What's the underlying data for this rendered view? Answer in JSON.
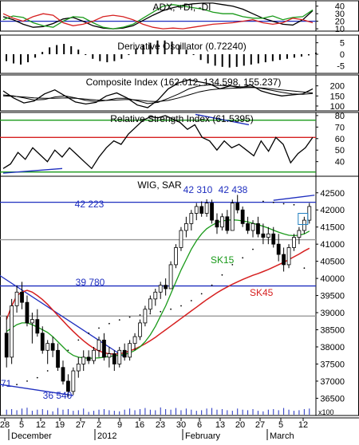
{
  "chart_data": [
    {
      "type": "line",
      "title": "ADX, +DI, -DI",
      "ylim": [
        8,
        46
      ],
      "yticks": [
        10,
        20,
        30,
        40
      ],
      "hlines": [
        {
          "value": 20,
          "color": "#1f2fbf"
        }
      ],
      "series": [
        {
          "role": "adx",
          "color": "#000000",
          "values": [
            26,
            22,
            16,
            12,
            13,
            17,
            23,
            25,
            20,
            14,
            11,
            10,
            11,
            14,
            21,
            28,
            34,
            38,
            41,
            43,
            44,
            44,
            42,
            40,
            36,
            30,
            24,
            20,
            16,
            15,
            22,
            34
          ]
        },
        {
          "role": "plus_di",
          "color": "#1a9a1a",
          "values": [
            22,
            27,
            25,
            18,
            14,
            12,
            20,
            26,
            25,
            18,
            12,
            10,
            12,
            16,
            24,
            32,
            40,
            42,
            40,
            38,
            36,
            32,
            30,
            30,
            26,
            24,
            24,
            27,
            22,
            25,
            26,
            35
          ]
        },
        {
          "role": "minus_di",
          "color": "#d62020",
          "values": [
            30,
            24,
            20,
            26,
            30,
            28,
            18,
            14,
            16,
            20,
            26,
            28,
            26,
            22,
            16,
            12,
            10,
            11,
            10,
            12,
            14,
            16,
            17,
            18,
            20,
            22,
            18,
            16,
            18,
            24,
            22,
            18
          ]
        }
      ]
    },
    {
      "type": "bar",
      "title": "Derivative Oscillator (0.72240)",
      "ylim": [
        -8,
        8
      ],
      "yticks": [
        5,
        0,
        -5
      ],
      "values": [
        -3,
        -4,
        -4.5,
        -3.5,
        -1.5,
        1,
        3,
        4,
        4.5,
        3.5,
        2,
        0,
        -2,
        -3,
        -3.5,
        -3,
        -2,
        0,
        2.5,
        4,
        5,
        6,
        6,
        5.5,
        4,
        2,
        0,
        -2.5,
        -4,
        -5,
        -5.5,
        -5.8,
        -5.5,
        -5,
        -4.5,
        -4,
        -3.5,
        -3,
        -2.5,
        -2,
        -1.5,
        -1,
        -0.5,
        0.7
      ]
    },
    {
      "type": "line",
      "title": "Composite Index (162.012, 134.598, 155.237)",
      "ylim": [
        80,
        250
      ],
      "yticks": [
        100,
        150,
        200
      ],
      "series": [
        {
          "role": "composite",
          "color": "#000000",
          "values": [
            175,
            140,
            115,
            125,
            160,
            180,
            150,
            120,
            110,
            118,
            150,
            165,
            140,
            105,
            92,
            130,
            185,
            215,
            230,
            220,
            210,
            185,
            200,
            190,
            205,
            175,
            160,
            150,
            155,
            160,
            185
          ]
        },
        {
          "role": "average_1",
          "color": "#000000",
          "values": [
            155,
            150,
            140,
            130,
            132,
            145,
            150,
            140,
            128,
            122,
            128,
            138,
            138,
            126,
            112,
            118,
            138,
            160,
            185,
            200,
            205,
            202,
            200,
            195,
            195,
            188,
            178,
            168,
            160,
            158,
            162
          ]
        },
        {
          "role": "average_2",
          "color": "#000000",
          "values": [
            150,
            148,
            145,
            140,
            138,
            138,
            140,
            138,
            134,
            130,
            128,
            130,
            132,
            130,
            124,
            122,
            128,
            140,
            155,
            170,
            180,
            185,
            188,
            190,
            192,
            190,
            185,
            180,
            175,
            170,
            165
          ]
        }
      ]
    },
    {
      "type": "line",
      "title": "Relative Strength Index (61.5395)",
      "ylim": [
        28,
        82
      ],
      "yticks": [
        40,
        50,
        60,
        70,
        80
      ],
      "hlines": [
        {
          "value": 76,
          "color": "#1a9a1a"
        },
        {
          "value": 61,
          "color": "#d62020"
        },
        {
          "value": 31,
          "color": "#1a9a1a"
        }
      ],
      "series": [
        {
          "role": "rsi",
          "color": "#000000",
          "values": [
            34,
            38,
            48,
            42,
            52,
            46,
            40,
            50,
            44,
            52,
            46,
            40,
            34,
            44,
            52,
            58,
            55,
            64,
            70,
            76,
            79,
            78,
            80,
            77,
            74,
            68,
            72,
            61,
            58,
            50,
            58,
            52,
            55,
            50,
            45,
            58,
            49,
            61,
            55,
            39,
            47,
            52,
            61
          ]
        },
        {
          "role": "trendline_low",
          "color": "#1f2fbf",
          "values": [
            30,
            34
          ]
        },
        {
          "role": "trendline_high",
          "color": "#1f2fbf",
          "values": [
            81,
            72
          ]
        }
      ]
    },
    {
      "type": "candlestick",
      "title": "WIG, SAR",
      "ylim": [
        36020,
        42960
      ],
      "yticks": [
        36500,
        37000,
        37500,
        38000,
        38500,
        39000,
        39500,
        40000,
        40500,
        41000,
        41500,
        42000,
        42500
      ],
      "unit_label": "x100",
      "x_tick_labels": [
        "28",
        "5",
        "12",
        "19",
        "27",
        "2",
        "9",
        "16",
        "23",
        "30",
        "6",
        "13",
        "20",
        "27",
        "5",
        "12"
      ],
      "month_labels": [
        "December",
        "2012",
        "February",
        "March"
      ],
      "level_labels": [
        "42 223",
        "39 780",
        "36 540",
        "42 310",
        "42 438",
        "71"
      ],
      "line_labels": [
        "SK15",
        "SK45"
      ],
      "hlines": [
        {
          "value": 42223,
          "color": "#1f2fbf",
          "label": "42 223"
        },
        {
          "value": 39780,
          "color": "#1f2fbf",
          "label": "39 780"
        },
        {
          "value": 41130,
          "color": "#999999"
        },
        {
          "value": 38900,
          "color": "#999999"
        }
      ],
      "trendlines": [
        {
          "color": "#1f2fbf",
          "from": {
            "i": -3,
            "v": 40250
          },
          "to": {
            "i": 23,
            "v": 37700
          }
        },
        {
          "color": "#1f2fbf",
          "from": {
            "i": -2,
            "v": 36920
          },
          "to": {
            "i": 13,
            "v": 36580
          }
        },
        {
          "color": "#1f2fbf",
          "from": {
            "i": 52,
            "v": 42280
          },
          "to": {
            "i": 60,
            "v": 42430
          }
        }
      ],
      "candles": [
        {
          "o": 38400,
          "h": 38900,
          "l": 37400,
          "c": 37700
        },
        {
          "o": 37700,
          "h": 39400,
          "l": 37500,
          "c": 39200
        },
        {
          "o": 39200,
          "h": 39800,
          "l": 39000,
          "c": 39600
        },
        {
          "o": 39600,
          "h": 39900,
          "l": 39100,
          "c": 39300
        },
        {
          "o": 39300,
          "h": 39500,
          "l": 38600,
          "c": 38700
        },
        {
          "o": 38700,
          "h": 39000,
          "l": 38100,
          "c": 38800
        },
        {
          "o": 38800,
          "h": 39100,
          "l": 38300,
          "c": 38400
        },
        {
          "o": 38400,
          "h": 38600,
          "l": 37800,
          "c": 37900
        },
        {
          "o": 37900,
          "h": 38200,
          "l": 37500,
          "c": 38100
        },
        {
          "o": 38100,
          "h": 38300,
          "l": 37700,
          "c": 37900
        },
        {
          "o": 37900,
          "h": 38100,
          "l": 37300,
          "c": 37400
        },
        {
          "o": 37400,
          "h": 37600,
          "l": 36900,
          "c": 37000
        },
        {
          "o": 37000,
          "h": 37200,
          "l": 36540,
          "c": 36700
        },
        {
          "o": 36700,
          "h": 37400,
          "l": 36600,
          "c": 37300
        },
        {
          "o": 37300,
          "h": 37700,
          "l": 37100,
          "c": 37500
        },
        {
          "o": 37500,
          "h": 37900,
          "l": 37300,
          "c": 37700
        },
        {
          "o": 37700,
          "h": 37900,
          "l": 37500,
          "c": 37600
        },
        {
          "o": 37600,
          "h": 38000,
          "l": 37500,
          "c": 37900
        },
        {
          "o": 37900,
          "h": 38300,
          "l": 37700,
          "c": 38200
        },
        {
          "o": 38200,
          "h": 38400,
          "l": 37600,
          "c": 37700
        },
        {
          "o": 37700,
          "h": 38000,
          "l": 37400,
          "c": 37800
        },
        {
          "o": 37800,
          "h": 37900,
          "l": 37300,
          "c": 37500
        },
        {
          "o": 37500,
          "h": 38000,
          "l": 37400,
          "c": 37900
        },
        {
          "o": 37900,
          "h": 38100,
          "l": 37600,
          "c": 37700
        },
        {
          "o": 37700,
          "h": 38200,
          "l": 37600,
          "c": 38100
        },
        {
          "o": 38100,
          "h": 38400,
          "l": 37900,
          "c": 38300
        },
        {
          "o": 38300,
          "h": 38800,
          "l": 38200,
          "c": 38700
        },
        {
          "o": 38700,
          "h": 39200,
          "l": 38600,
          "c": 39100
        },
        {
          "o": 39100,
          "h": 39500,
          "l": 39000,
          "c": 39400
        },
        {
          "o": 39400,
          "h": 39700,
          "l": 39200,
          "c": 39600
        },
        {
          "o": 39600,
          "h": 39900,
          "l": 39400,
          "c": 39800
        },
        {
          "o": 39800,
          "h": 40000,
          "l": 39500,
          "c": 39700
        },
        {
          "o": 39700,
          "h": 40500,
          "l": 39700,
          "c": 40400
        },
        {
          "o": 40400,
          "h": 41000,
          "l": 40300,
          "c": 40900
        },
        {
          "o": 40900,
          "h": 41500,
          "l": 40800,
          "c": 41400
        },
        {
          "o": 41400,
          "h": 41800,
          "l": 41200,
          "c": 41600
        },
        {
          "o": 41600,
          "h": 42000,
          "l": 41400,
          "c": 41900
        },
        {
          "o": 41900,
          "h": 42200,
          "l": 41700,
          "c": 42100
        },
        {
          "o": 42100,
          "h": 42250,
          "l": 41800,
          "c": 41900
        },
        {
          "o": 41900,
          "h": 42310,
          "l": 41800,
          "c": 42200
        },
        {
          "o": 42200,
          "h": 42300,
          "l": 41600,
          "c": 41700
        },
        {
          "o": 41700,
          "h": 41900,
          "l": 41300,
          "c": 41500
        },
        {
          "o": 41500,
          "h": 41900,
          "l": 41400,
          "c": 41800
        },
        {
          "o": 41800,
          "h": 42000,
          "l": 41300,
          "c": 41400
        },
        {
          "o": 41400,
          "h": 42300,
          "l": 41400,
          "c": 42200
        },
        {
          "o": 42200,
          "h": 42438,
          "l": 41900,
          "c": 42000
        },
        {
          "o": 42000,
          "h": 42100,
          "l": 41500,
          "c": 41600
        },
        {
          "o": 41600,
          "h": 41800,
          "l": 41300,
          "c": 41400
        },
        {
          "o": 41400,
          "h": 41700,
          "l": 41200,
          "c": 41600
        },
        {
          "o": 41600,
          "h": 41800,
          "l": 41200,
          "c": 41300
        },
        {
          "o": 41300,
          "h": 41600,
          "l": 41000,
          "c": 41200
        },
        {
          "o": 41200,
          "h": 41500,
          "l": 41000,
          "c": 41300
        },
        {
          "o": 41300,
          "h": 41500,
          "l": 40900,
          "c": 41000
        },
        {
          "o": 41000,
          "h": 41300,
          "l": 40500,
          "c": 40700
        },
        {
          "o": 40700,
          "h": 40900,
          "l": 40200,
          "c": 40400
        },
        {
          "o": 40400,
          "h": 41000,
          "l": 40300,
          "c": 40900
        },
        {
          "o": 40900,
          "h": 41300,
          "l": 40800,
          "c": 41200
        },
        {
          "o": 41200,
          "h": 41500,
          "l": 41000,
          "c": 41400
        },
        {
          "o": 41400,
          "h": 41800,
          "l": 41300,
          "c": 41700
        },
        {
          "o": 41700,
          "h": 42200,
          "l": 41600,
          "c": 42100
        }
      ],
      "sar": {
        "color": "#000000",
        "points": [
          [
            2,
            36900
          ],
          [
            4,
            37000
          ],
          [
            6,
            37100
          ],
          [
            8,
            37300
          ],
          [
            10,
            37600
          ],
          [
            12,
            37900
          ],
          [
            14,
            38200
          ],
          [
            16,
            38400
          ],
          [
            18,
            38550
          ],
          [
            20,
            38680
          ],
          [
            22,
            38790
          ],
          [
            24,
            38870
          ],
          [
            26,
            38930
          ],
          [
            28,
            38970
          ],
          [
            30,
            39030
          ],
          [
            32,
            39100
          ],
          [
            34,
            39200
          ],
          [
            36,
            39350
          ],
          [
            38,
            39550
          ],
          [
            40,
            39800
          ],
          [
            42,
            40100
          ],
          [
            44,
            40400
          ],
          [
            46,
            40600
          ],
          [
            48,
            40850
          ],
          [
            50,
            42250
          ],
          [
            52,
            42220
          ],
          [
            54,
            42180
          ],
          [
            56,
            42150
          ],
          [
            58,
            40300
          ]
        ]
      },
      "sk15": {
        "color": "#1a9a1a",
        "values": [
          38450,
          38550,
          38650,
          38700,
          38700,
          38650,
          38580,
          38500,
          38420,
          38300,
          38150,
          38000,
          37850,
          37750,
          37700,
          37680,
          37670,
          37670,
          37680,
          37700,
          37720,
          37740,
          37760,
          37780,
          37820,
          37900,
          38000,
          38150,
          38350,
          38600,
          38900,
          39200,
          39550,
          39900,
          40250,
          40550,
          40850,
          41100,
          41300,
          41450,
          41550,
          41630,
          41680,
          41700,
          41710,
          41700,
          41680,
          41650,
          41610,
          41570,
          41520,
          41470,
          41410,
          41350,
          41300,
          41260,
          41250,
          41260,
          41300,
          41380
        ]
      },
      "sk45": {
        "color": "#d62020",
        "values": [
          38800,
          39200,
          39500,
          39600,
          39650,
          39600,
          39500,
          39380,
          39240,
          39080,
          38920,
          38760,
          38600,
          38450,
          38310,
          38180,
          38060,
          37960,
          37880,
          37830,
          37800,
          37790,
          37800,
          37830,
          37880,
          37940,
          38010,
          38090,
          38180,
          38280,
          38390,
          38500,
          38610,
          38720,
          38830,
          38940,
          39050,
          39160,
          39270,
          39380,
          39480,
          39580,
          39670,
          39750,
          39830,
          39900,
          39970,
          40030,
          40090,
          40140,
          40200,
          40260,
          40330,
          40400,
          40470,
          40550,
          40630,
          40710,
          40800,
          40880
        ]
      },
      "volume": [
        18,
        20,
        16,
        22,
        25,
        14,
        18,
        20,
        16,
        12,
        24,
        18,
        20,
        14,
        16,
        22,
        10,
        14,
        18,
        20,
        16,
        14,
        12,
        18,
        22,
        16,
        20,
        24,
        18,
        16,
        26,
        20,
        18,
        24,
        16,
        22,
        18,
        14,
        16,
        22,
        24,
        18,
        20,
        16,
        14,
        22,
        18,
        16,
        20,
        14,
        12,
        18,
        20,
        16,
        24,
        18,
        14,
        16,
        20,
        22
      ]
    }
  ]
}
